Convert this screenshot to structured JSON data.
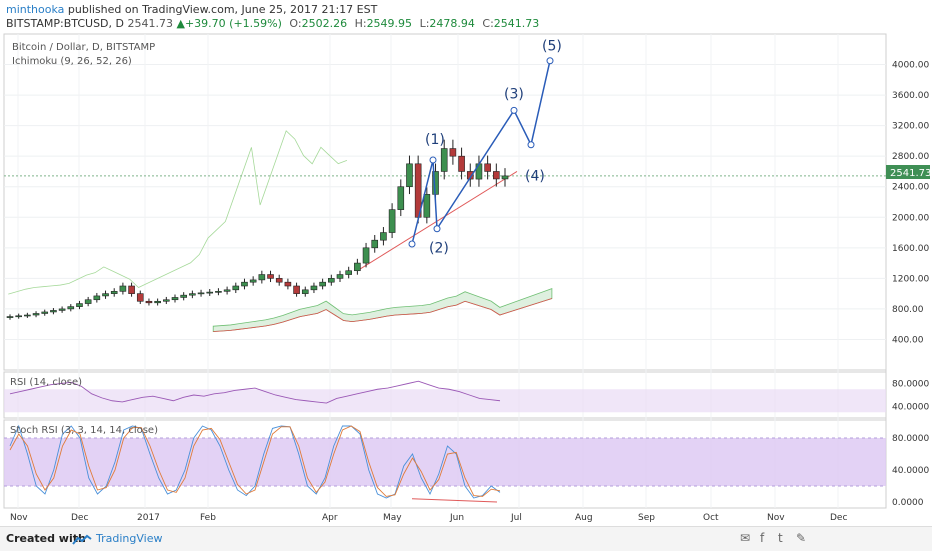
{
  "header": {
    "author": "minthooka",
    "published": "published on TradingView.com, June 25, 2017 21:17 EST",
    "symbol": "BITSTAMP:BTCUSD, D",
    "last": "2541.73",
    "change": "+39.70 (+1.59%)",
    "o_label": "O:",
    "o_value": "2502.26",
    "h_label": "H:",
    "h_value": "2549.95",
    "l_label": "L:",
    "l_value": "2478.94",
    "c_label": "C:",
    "c_value": "2541.73"
  },
  "footer": {
    "created_with": "Created with",
    "brand": "TradingView"
  },
  "chart_data": {
    "type": "candlestick",
    "title": "Bitcoin / Dollar, D, BITSTAMP",
    "indicator": "Ichimoku (9, 26, 52, 26)",
    "price_label": "2541.73",
    "y_ticks": [
      "4000.00",
      "3600.00",
      "3200.00",
      "2800.00",
      "2400.00",
      "2000.00",
      "1600.00",
      "1200.00",
      "800.00",
      "400.00"
    ],
    "y_tick_values": [
      4000,
      3600,
      3200,
      2800,
      2400,
      2000,
      1600,
      1200,
      800,
      400
    ],
    "ylim": [
      0,
      4400
    ],
    "x_ticks": [
      "Nov",
      "Dec",
      "2017",
      "Feb",
      "Apr",
      "May",
      "Jun",
      "Jul",
      "Aug",
      "Sep",
      "Oct",
      "Nov",
      "Dec"
    ],
    "close_series": [
      700,
      710,
      720,
      740,
      760,
      780,
      800,
      830,
      870,
      920,
      970,
      1000,
      1030,
      1100,
      1000,
      900,
      880,
      900,
      920,
      950,
      980,
      1000,
      1010,
      1020,
      1030,
      1050,
      1100,
      1150,
      1180,
      1250,
      1200,
      1150,
      1100,
      1000,
      1050,
      1100,
      1150,
      1200,
      1250,
      1300,
      1400,
      1600,
      1700,
      1800,
      2100,
      2400,
      2700,
      2000,
      2300,
      2600,
      2900,
      2800,
      2600,
      2500,
      2700,
      2600,
      2502,
      2541.73
    ],
    "elliott_wave": {
      "labels": [
        "(1)",
        "(2)",
        "(3)",
        "(4)",
        "(5)"
      ],
      "points": [
        [
          0,
          1650
        ],
        [
          1,
          2750
        ],
        [
          2,
          1850
        ],
        [
          3,
          3400
        ],
        [
          4,
          2950
        ],
        [
          5,
          4050
        ]
      ]
    },
    "rsi": {
      "title": "RSI (14, close)",
      "ticks": [
        "80.0000",
        "40.0000"
      ],
      "tick_values": [
        80,
        40
      ],
      "band": [
        30,
        70
      ],
      "ylim": [
        20,
        100
      ],
      "values": [
        62,
        66,
        70,
        74,
        78,
        80,
        82,
        75,
        62,
        55,
        50,
        48,
        52,
        56,
        58,
        54,
        50,
        56,
        60,
        58,
        62,
        64,
        68,
        70,
        72,
        66,
        60,
        56,
        52,
        50,
        48,
        46,
        54,
        58,
        62,
        66,
        70,
        72,
        76,
        80,
        84,
        78,
        72,
        70,
        66,
        60,
        54,
        52,
        50
      ]
    },
    "stoch_rsi": {
      "title": "Stoch RSI (3, 3, 14, 14, close)",
      "ticks": [
        "80.0000",
        "40.0000",
        "0.0000"
      ],
      "tick_values": [
        80,
        40,
        0
      ],
      "band": [
        20,
        80
      ],
      "ylim": [
        -5,
        100
      ],
      "k": [
        70,
        95,
        60,
        20,
        10,
        40,
        85,
        95,
        80,
        30,
        10,
        20,
        50,
        90,
        95,
        92,
        60,
        30,
        10,
        15,
        40,
        80,
        95,
        90,
        70,
        40,
        15,
        8,
        20,
        60,
        92,
        95,
        94,
        60,
        20,
        10,
        30,
        70,
        95,
        95,
        85,
        40,
        10,
        5,
        10,
        45,
        60,
        30,
        10,
        35,
        70,
        60,
        20,
        5,
        8,
        20,
        12
      ],
      "d": [
        65,
        85,
        70,
        35,
        15,
        30,
        70,
        90,
        85,
        45,
        15,
        18,
        40,
        80,
        93,
        93,
        70,
        40,
        15,
        12,
        30,
        70,
        90,
        92,
        78,
        50,
        22,
        10,
        15,
        50,
        85,
        94,
        94,
        70,
        30,
        12,
        25,
        60,
        90,
        95,
        88,
        50,
        18,
        7,
        9,
        35,
        55,
        38,
        15,
        28,
        60,
        62,
        30,
        8,
        7,
        16,
        14
      ]
    }
  }
}
